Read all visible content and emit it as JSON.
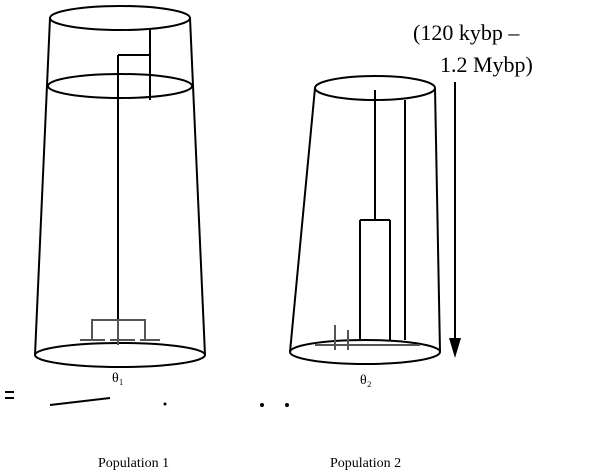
{
  "annotation": {
    "line1": "(120 kybp –",
    "line2": "1.2 Mybp)"
  },
  "populations": [
    {
      "label": "Population 1",
      "theta": "θ₁"
    },
    {
      "label": "Population 2",
      "theta": "θ₂"
    }
  ]
}
